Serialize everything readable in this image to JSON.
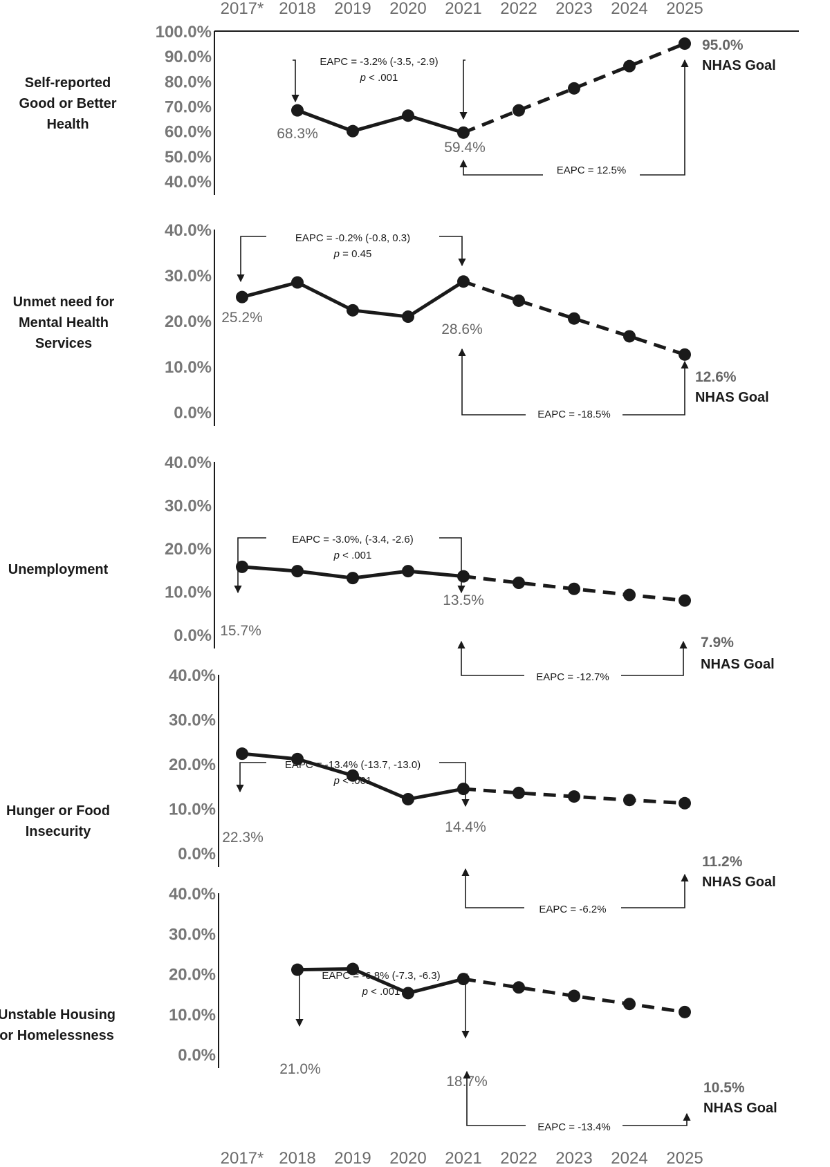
{
  "years": [
    "2017*",
    "2018",
    "2019",
    "2020",
    "2021",
    "2022",
    "2023",
    "2024",
    "2025"
  ],
  "goal_tag": "NHAS Goal",
  "p_symbol": "p",
  "chart_data": [
    {
      "type": "line",
      "row_label": [
        "Self-reported",
        "Good or Better",
        "Health"
      ],
      "ylim": [
        40,
        100
      ],
      "yticks": [
        "40.0%",
        "50.0%",
        "60.0%",
        "70.0%",
        "80.0%",
        "90.0%",
        "100.0%"
      ],
      "observed": {
        "x": [
          "2018",
          "2019",
          "2020",
          "2021"
        ],
        "values": [
          68.3,
          60.0,
          66.2,
          59.4
        ]
      },
      "projected": {
        "x": [
          "2021",
          "2022",
          "2023",
          "2024",
          "2025"
        ],
        "values": [
          59.4,
          68.3,
          77.1,
          86.0,
          95.0
        ]
      },
      "labels": {
        "start": "68.3%",
        "end": "59.4%",
        "goal": "95.0%"
      },
      "eapc_observed": "EAPC = -3.2% (-3.5, -2.9)",
      "p_observed": "< .001",
      "eapc_projected": "EAPC = 12.5%"
    },
    {
      "type": "line",
      "row_label": [
        "Unmet need for",
        "Mental Health",
        "Services"
      ],
      "ylim": [
        0,
        40
      ],
      "yticks": [
        "0.0%",
        "10.0%",
        "20.0%",
        "30.0%",
        "40.0%"
      ],
      "observed": {
        "x": [
          "2017*",
          "2018",
          "2019",
          "2020",
          "2021"
        ],
        "values": [
          25.2,
          28.4,
          22.3,
          20.9,
          28.6
        ]
      },
      "projected": {
        "x": [
          "2021",
          "2022",
          "2023",
          "2024",
          "2025"
        ],
        "values": [
          28.6,
          24.4,
          20.5,
          16.6,
          12.6
        ]
      },
      "labels": {
        "start": "25.2%",
        "end": "28.6%",
        "goal": "12.6%"
      },
      "eapc_observed": "EAPC = -0.2% (-0.8, 0.3)",
      "p_observed": "= 0.45",
      "eapc_projected": "EAPC = -18.5%"
    },
    {
      "type": "line",
      "row_label": [
        "Unemployment"
      ],
      "ylim": [
        0,
        40
      ],
      "yticks": [
        "0.0%",
        "10.0%",
        "20.0%",
        "30.0%",
        "40.0%"
      ],
      "observed": {
        "x": [
          "2017*",
          "2018",
          "2019",
          "2020",
          "2021"
        ],
        "values": [
          15.7,
          14.7,
          13.1,
          14.7,
          13.5
        ]
      },
      "projected": {
        "x": [
          "2021",
          "2022",
          "2023",
          "2024",
          "2025"
        ],
        "values": [
          13.5,
          12.0,
          10.6,
          9.2,
          7.9
        ]
      },
      "labels": {
        "start": "15.7%",
        "end": "13.5%",
        "goal": "7.9%"
      },
      "eapc_observed": "EAPC = -3.0%, (-3.4, -2.6)",
      "p_observed": "< .001",
      "eapc_projected": "EAPC = -12.7%"
    },
    {
      "type": "line",
      "row_label": [
        "Hunger or Food",
        "Insecurity"
      ],
      "ylim": [
        0,
        40
      ],
      "yticks": [
        "0.0%",
        "10.0%",
        "20.0%",
        "30.0%",
        "40.0%"
      ],
      "observed": {
        "x": [
          "2017*",
          "2018",
          "2019",
          "2020",
          "2021"
        ],
        "values": [
          22.3,
          21.1,
          17.4,
          12.1,
          14.4
        ]
      },
      "projected": {
        "x": [
          "2021",
          "2022",
          "2023",
          "2024",
          "2025"
        ],
        "values": [
          14.4,
          13.5,
          12.7,
          11.9,
          11.2
        ]
      },
      "labels": {
        "start": "22.3%",
        "end": "14.4%",
        "goal": "11.2%"
      },
      "eapc_observed": "EAPC = -13.4% (-13.7, -13.0)",
      "p_observed": "< .001",
      "eapc_projected": "EAPC = -6.2%"
    },
    {
      "type": "line",
      "row_label": [
        "Unstable Housing",
        "or Homelessness"
      ],
      "ylim": [
        0,
        40
      ],
      "yticks": [
        "0.0%",
        "10.0%",
        "20.0%",
        "30.0%",
        "40.0%"
      ],
      "observed": {
        "x": [
          "2018",
          "2019",
          "2020",
          "2021"
        ],
        "values": [
          21.0,
          21.2,
          15.2,
          18.7
        ]
      },
      "projected": {
        "x": [
          "2021",
          "2022",
          "2023",
          "2024",
          "2025"
        ],
        "values": [
          18.7,
          16.6,
          14.5,
          12.5,
          10.5
        ]
      },
      "labels": {
        "start": "21.0%",
        "end": "18.7%",
        "goal": "10.5%"
      },
      "eapc_observed": "EAPC = -6.8% (-7.3, -6.3)",
      "p_observed": "< .001",
      "eapc_projected": "EAPC = -13.4%"
    }
  ]
}
